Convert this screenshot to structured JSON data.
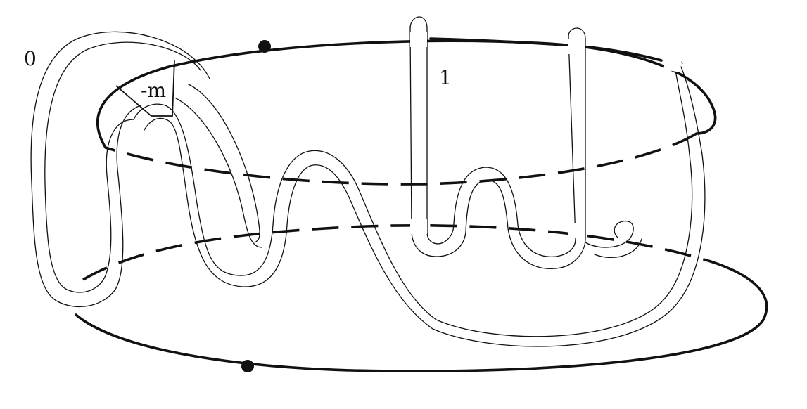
{
  "figure": {
    "labels": {
      "framing_zero": "0",
      "framing_one": "1",
      "twist_box": "-m"
    },
    "ink_color": "#111111",
    "background_color": "#ffffff",
    "dotted_circle_markers": 2
  }
}
